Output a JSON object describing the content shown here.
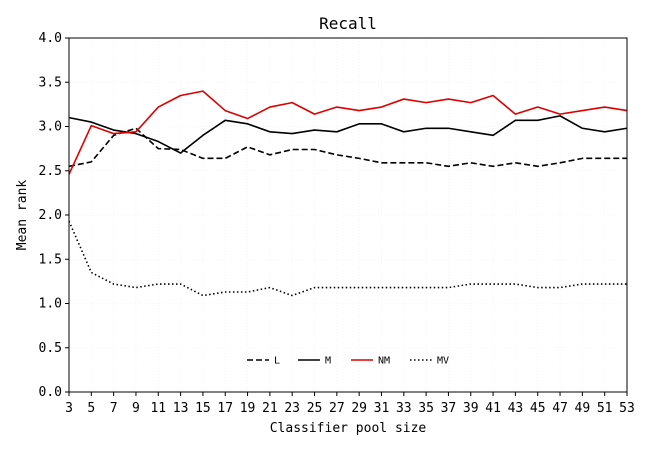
{
  "chart_data": {
    "type": "line",
    "title": "Recall",
    "xlabel": "Classifier pool size",
    "ylabel": "Mean rank",
    "xlim": [
      3,
      53
    ],
    "ylim": [
      0.0,
      4.0
    ],
    "x_ticks": [
      "3",
      "5",
      "7",
      "9",
      "11",
      "13",
      "15",
      "17",
      "19",
      "21",
      "23",
      "25",
      "27",
      "29",
      "31",
      "33",
      "35",
      "37",
      "39",
      "41",
      "43",
      "45",
      "47",
      "49",
      "51",
      "53"
    ],
    "y_ticks": [
      "0.0",
      "0.5",
      "1.0",
      "1.5",
      "2.0",
      "2.5",
      "3.0",
      "3.5",
      "4.0"
    ],
    "grid": true,
    "legend_position": "bottom-center",
    "x": [
      3,
      5,
      7,
      9,
      11,
      13,
      15,
      17,
      19,
      21,
      23,
      25,
      27,
      29,
      31,
      33,
      35,
      37,
      39,
      41,
      43,
      45,
      47,
      49,
      51,
      53
    ],
    "series": [
      {
        "name": "L",
        "color": "#000000",
        "dash": "dashed",
        "values": [
          2.55,
          2.6,
          2.9,
          2.98,
          2.75,
          2.74,
          2.64,
          2.64,
          2.77,
          2.68,
          2.74,
          2.74,
          2.68,
          2.64,
          2.59,
          2.59,
          2.59,
          2.55,
          2.59,
          2.55,
          2.59,
          2.55,
          2.59,
          2.64,
          2.64,
          2.64
        ]
      },
      {
        "name": "M",
        "color": "#000000",
        "dash": "solid",
        "values": [
          3.1,
          3.05,
          2.96,
          2.92,
          2.83,
          2.7,
          2.9,
          3.07,
          3.03,
          2.94,
          2.92,
          2.96,
          2.94,
          3.03,
          3.03,
          2.94,
          2.98,
          2.98,
          2.94,
          2.9,
          3.07,
          3.07,
          3.12,
          2.98,
          2.94,
          2.98
        ]
      },
      {
        "name": "NM",
        "color": "#dd0000",
        "dash": "solid",
        "values": [
          2.46,
          3.01,
          2.92,
          2.94,
          3.22,
          3.35,
          3.4,
          3.18,
          3.09,
          3.22,
          3.27,
          3.14,
          3.22,
          3.18,
          3.22,
          3.31,
          3.27,
          3.31,
          3.27,
          3.35,
          3.14,
          3.22,
          3.14,
          3.18,
          3.22,
          3.18
        ]
      },
      {
        "name": "MV",
        "color": "#000000",
        "dash": "dotted",
        "values": [
          1.93,
          1.35,
          1.22,
          1.18,
          1.22,
          1.22,
          1.09,
          1.13,
          1.13,
          1.18,
          1.09,
          1.18,
          1.18,
          1.18,
          1.18,
          1.18,
          1.18,
          1.18,
          1.22,
          1.22,
          1.22,
          1.18,
          1.18,
          1.22,
          1.22,
          1.22
        ]
      }
    ]
  }
}
